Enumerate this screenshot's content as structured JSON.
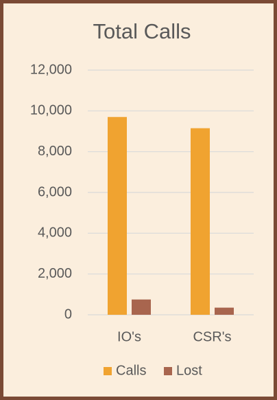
{
  "chart_data": {
    "type": "bar",
    "title": "Total Calls",
    "categories": [
      "IO's",
      "CSR's"
    ],
    "series": [
      {
        "name": "Calls",
        "color": "#f0a330",
        "values": [
          9700,
          9150
        ]
      },
      {
        "name": "Lost",
        "color": "#a8654e",
        "values": [
          750,
          350
        ]
      }
    ],
    "ylim": [
      0,
      12000
    ],
    "yticks": [
      0,
      {
        "value": 2000,
        "label": "2,000"
      },
      {
        "value": 4000,
        "label": "4,000"
      },
      {
        "value": 6000,
        "label": "6,000"
      },
      {
        "value": 8000,
        "label": "8,000"
      },
      {
        "value": 10000,
        "label": "10,000"
      },
      {
        "value": 12000,
        "label": "12,000"
      }
    ],
    "grid": true,
    "legend": "bottom"
  }
}
